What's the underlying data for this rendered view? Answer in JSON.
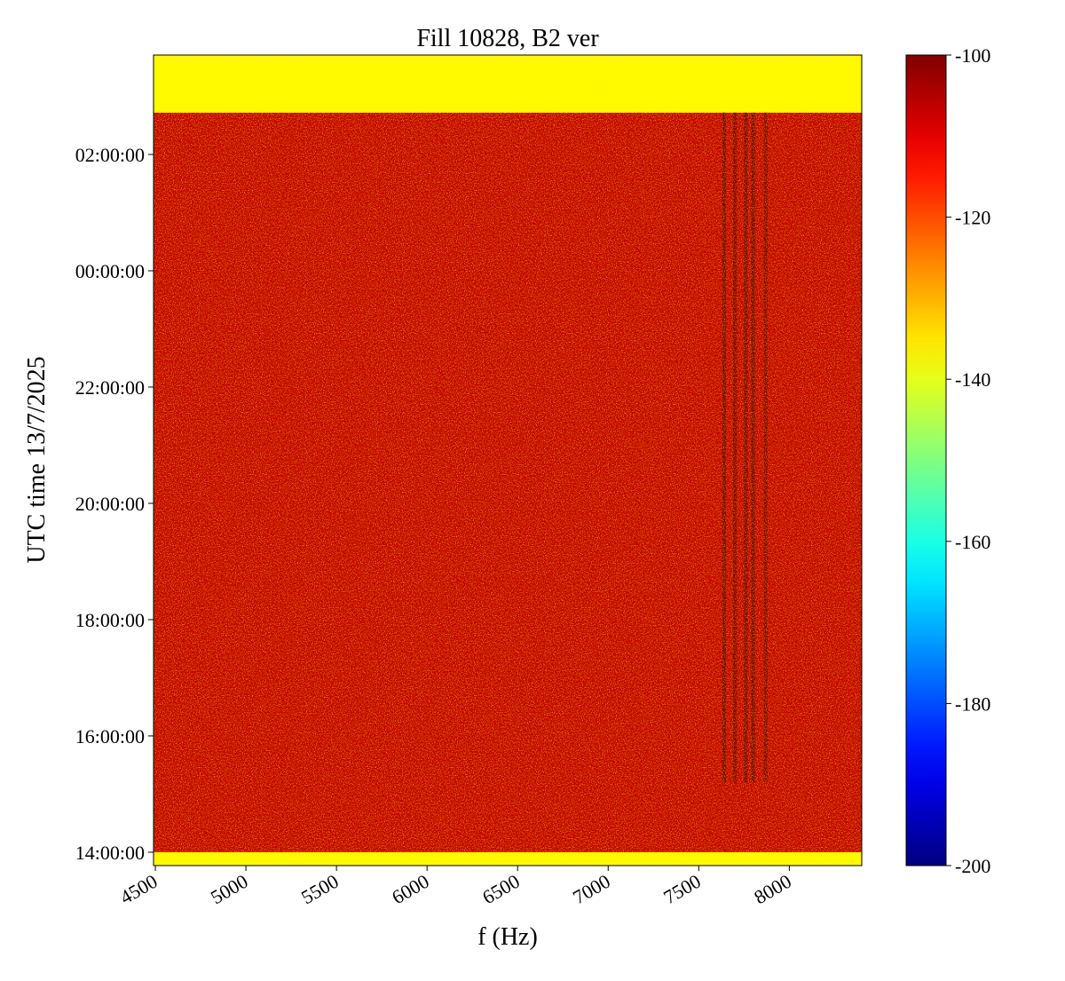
{
  "chart_data": {
    "type": "heatmap",
    "title": "Fill 10828, B2 ver",
    "x_label": "f (Hz)",
    "y_label": "UTC time 13/7/2025",
    "xlim": [
      4490,
      8400
    ],
    "xticks": [
      4500,
      5000,
      5500,
      6000,
      6500,
      7000,
      7500,
      8000
    ],
    "ylim": [
      13.77,
      27.71
    ],
    "yticks": [
      {
        "value": 14,
        "label": "14:00:00"
      },
      {
        "value": 16,
        "label": "16:00:00"
      },
      {
        "value": 18,
        "label": "18:00:00"
      },
      {
        "value": 20,
        "label": "20:00:00"
      },
      {
        "value": 22,
        "label": "22:00:00"
      },
      {
        "value": 24,
        "label": "00:00:00"
      },
      {
        "value": 26,
        "label": "02:00:00"
      }
    ],
    "colormap": "jet",
    "clim": [
      -200,
      -100
    ],
    "cticks": [
      -200,
      -180,
      -160,
      -140,
      -120,
      -100
    ],
    "cells": [
      {
        "x": [
          4490,
          8400
        ],
        "y": [
          13.77,
          14.0
        ],
        "value": -137
      },
      {
        "x": [
          4490,
          8400
        ],
        "y": [
          14.0,
          26.72
        ],
        "value": -107
      },
      {
        "x": [
          4490,
          8400
        ],
        "y": [
          26.72,
          27.71
        ],
        "value": -137
      },
      {
        "x": [
          7630,
          7650
        ],
        "y": [
          15.2,
          26.72
        ],
        "value": -101
      },
      {
        "x": [
          7690,
          7710
        ],
        "y": [
          15.2,
          26.72
        ],
        "value": -101
      },
      {
        "x": [
          7750,
          7770
        ],
        "y": [
          15.2,
          26.72
        ],
        "value": -101
      },
      {
        "x": [
          7790,
          7810
        ],
        "y": [
          15.2,
          26.72
        ],
        "value": -101
      },
      {
        "x": [
          7860,
          7880
        ],
        "y": [
          15.2,
          26.72
        ],
        "value": -102
      }
    ]
  }
}
